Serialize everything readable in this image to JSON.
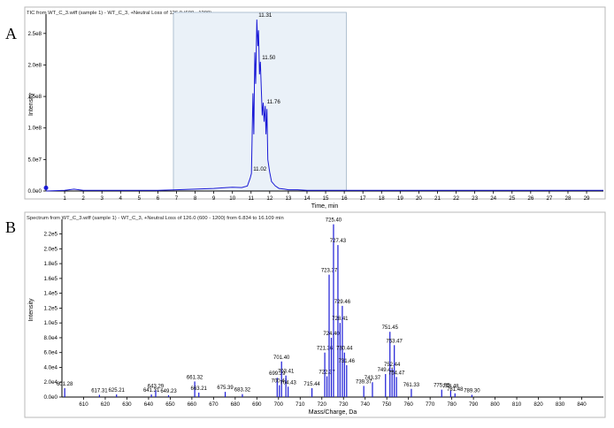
{
  "panels": [
    {
      "letter": "A"
    },
    {
      "letter": "B"
    }
  ],
  "chart_data": [
    {
      "type": "line",
      "title": "TIC from WT_C_3.wiff (sample 1) - WT_C_3, +Neutral Loss of 126.0 (600 - 1200)",
      "xlabel": "Time, min",
      "ylabel": "Intensity",
      "xlim": [
        0,
        29.9
      ],
      "ylim": [
        0,
        275000000.0
      ],
      "x_ticks": [
        1,
        2,
        3,
        4,
        5,
        6,
        7,
        8,
        9,
        10,
        11,
        12,
        13,
        14,
        15,
        16,
        17,
        18,
        19,
        20,
        21,
        22,
        23,
        24,
        25,
        26,
        27,
        28,
        29
      ],
      "y_ticks": [
        0,
        50000000.0,
        100000000.0,
        150000000.0,
        200000000.0,
        250000000.0
      ],
      "y_tick_labels": [
        "0.0e0",
        "5.0e7",
        "1.0e8",
        "1.5e8",
        "2.0e8",
        "2.5e8"
      ],
      "highlight_range": [
        6.834,
        16.109
      ],
      "series": [
        {
          "x": [
            0.0,
            1.0,
            1.5,
            2.0,
            3.0,
            4.0,
            5.0,
            6.0,
            7.0,
            8.0,
            9.0,
            9.5,
            10.0,
            10.5,
            10.8,
            10.95,
            11.02,
            11.1,
            11.15,
            11.2,
            11.25,
            11.31,
            11.36,
            11.4,
            11.45,
            11.5,
            11.55,
            11.6,
            11.65,
            11.7,
            11.76,
            11.8,
            11.85,
            11.9,
            12.0,
            12.1,
            12.3,
            12.5,
            12.8,
            13.0,
            13.5,
            14.0,
            15.0,
            16.0,
            17.0,
            18.0,
            20.0,
            22.0,
            24.0,
            26.0,
            28.0,
            29.9
          ],
          "y": [
            0,
            1000000.0,
            3000000.0,
            1000000.0,
            1000000.0,
            1000000.0,
            1000000.0,
            1000000.0,
            2000000.0,
            3000000.0,
            4000000.0,
            5000000.0,
            6000000.0,
            5500000.0,
            8000000.0,
            20000000.0,
            28000000.0,
            155000000.0,
            90000000.0,
            220000000.0,
            170000000.0,
            272000000.0,
            230000000.0,
            255000000.0,
            185000000.0,
            205000000.0,
            160000000.0,
            120000000.0,
            140000000.0,
            110000000.0,
            135000000.0,
            90000000.0,
            130000000.0,
            50000000.0,
            30000000.0,
            15000000.0,
            8000000.0,
            4000000.0,
            3000000.0,
            2000000.0,
            2000000.0,
            1000000.0,
            1000000.0,
            1000000.0,
            1000000.0,
            1000000.0,
            1000000.0,
            1000000.0,
            1000000.0,
            1000000.0,
            1000000.0,
            1000000.0
          ]
        }
      ],
      "annotations": [
        {
          "label": "11.31",
          "x": 11.31,
          "y": 272000000.0
        },
        {
          "label": "11.50",
          "x": 11.5,
          "y": 205000000.0
        },
        {
          "label": "11.76",
          "x": 11.76,
          "y": 135000000.0
        },
        {
          "label": "11.02",
          "x": 11.02,
          "y": 28000000.0
        }
      ]
    },
    {
      "type": "bar",
      "title": "Spectrum from WT_C_3.wiff (sample 1) - WT_C_3, +Neutral Loss of 126.0 (600 - 1200) from 6.834 to 16.109 min",
      "xlabel": "Mass/Charge, Da",
      "ylabel": "Intensity",
      "xlim": [
        600,
        850
      ],
      "ylim": [
        0,
        235000.0
      ],
      "x_ticks": [
        610,
        620,
        630,
        640,
        650,
        660,
        670,
        680,
        690,
        700,
        710,
        720,
        730,
        740,
        750,
        760,
        770,
        780,
        790,
        800,
        810,
        820,
        830,
        840
      ],
      "y_ticks": [
        0,
        20000.0,
        40000.0,
        60000.0,
        80000.0,
        100000.0,
        120000.0,
        140000.0,
        160000.0,
        180000.0,
        200000.0,
        220000.0
      ],
      "y_tick_labels": [
        "0.0e0",
        "2.0e4",
        "4.0e4",
        "6.0e4",
        "8.0e4",
        "1.0e5",
        "1.2e5",
        "1.4e5",
        "1.6e5",
        "1.8e5",
        "2.0e5",
        "2.2e5"
      ],
      "peaks": [
        {
          "mz": 601.28,
          "intensity": 12000,
          "label": "601.28"
        },
        {
          "mz": 617.31,
          "intensity": 3000,
          "label": "617.31"
        },
        {
          "mz": 625.21,
          "intensity": 3500,
          "label": "625.21"
        },
        {
          "mz": 641.31,
          "intensity": 3500,
          "label": "641.31"
        },
        {
          "mz": 643.29,
          "intensity": 9000,
          "label": "643.29"
        },
        {
          "mz": 649.23,
          "intensity": 2500,
          "label": "649.23"
        },
        {
          "mz": 661.32,
          "intensity": 21000,
          "label": "661.32"
        },
        {
          "mz": 663.21,
          "intensity": 6000,
          "label": "663.21"
        },
        {
          "mz": 675.39,
          "intensity": 7000,
          "label": "675.39"
        },
        {
          "mz": 683.32,
          "intensity": 4000,
          "label": "683.32"
        },
        {
          "mz": 699.39,
          "intensity": 26000,
          "label": "699.39"
        },
        {
          "mz": 700.41,
          "intensity": 16000,
          "label": "700.41"
        },
        {
          "mz": 701.4,
          "intensity": 48000,
          "label": "701.40"
        },
        {
          "mz": 703.41,
          "intensity": 29000,
          "label": "703.41"
        },
        {
          "mz": 704.43,
          "intensity": 14000,
          "label": "704.43"
        },
        {
          "mz": 715.44,
          "intensity": 12000,
          "label": "715.44"
        },
        {
          "mz": 721.36,
          "intensity": 60000,
          "label": "721.36"
        },
        {
          "mz": 722.37,
          "intensity": 28000,
          "label": "722.37"
        },
        {
          "mz": 723.37,
          "intensity": 165000,
          "label": "723.37"
        },
        {
          "mz": 724.4,
          "intensity": 80000,
          "label": "724.40"
        },
        {
          "mz": 725.4,
          "intensity": 233000,
          "label": "725.40"
        },
        {
          "mz": 727.43,
          "intensity": 205000,
          "label": "727.43"
        },
        {
          "mz": 728.41,
          "intensity": 100000,
          "label": "728.41"
        },
        {
          "mz": 729.46,
          "intensity": 123000,
          "label": "729.46"
        },
        {
          "mz": 730.44,
          "intensity": 60000,
          "label": "730.44"
        },
        {
          "mz": 731.46,
          "intensity": 43000,
          "label": "731.46"
        },
        {
          "mz": 739.37,
          "intensity": 15000,
          "label": "739.37"
        },
        {
          "mz": 743.37,
          "intensity": 20000,
          "label": "743.37"
        },
        {
          "mz": 749.41,
          "intensity": 31000,
          "label": "749.41"
        },
        {
          "mz": 751.45,
          "intensity": 88000,
          "label": "751.45"
        },
        {
          "mz": 752.44,
          "intensity": 38000,
          "label": "752.44"
        },
        {
          "mz": 753.47,
          "intensity": 70000,
          "label": "753.47"
        },
        {
          "mz": 754.47,
          "intensity": 27000,
          "label": "754.47"
        },
        {
          "mz": 761.33,
          "intensity": 11000,
          "label": "761.33"
        },
        {
          "mz": 775.35,
          "intensity": 10000,
          "label": "775.35"
        },
        {
          "mz": 779.48,
          "intensity": 9000,
          "label": "779.48"
        },
        {
          "mz": 781.48,
          "intensity": 5000,
          "label": "781.48"
        },
        {
          "mz": 789.3,
          "intensity": 3000,
          "label": "789.30"
        }
      ]
    }
  ]
}
